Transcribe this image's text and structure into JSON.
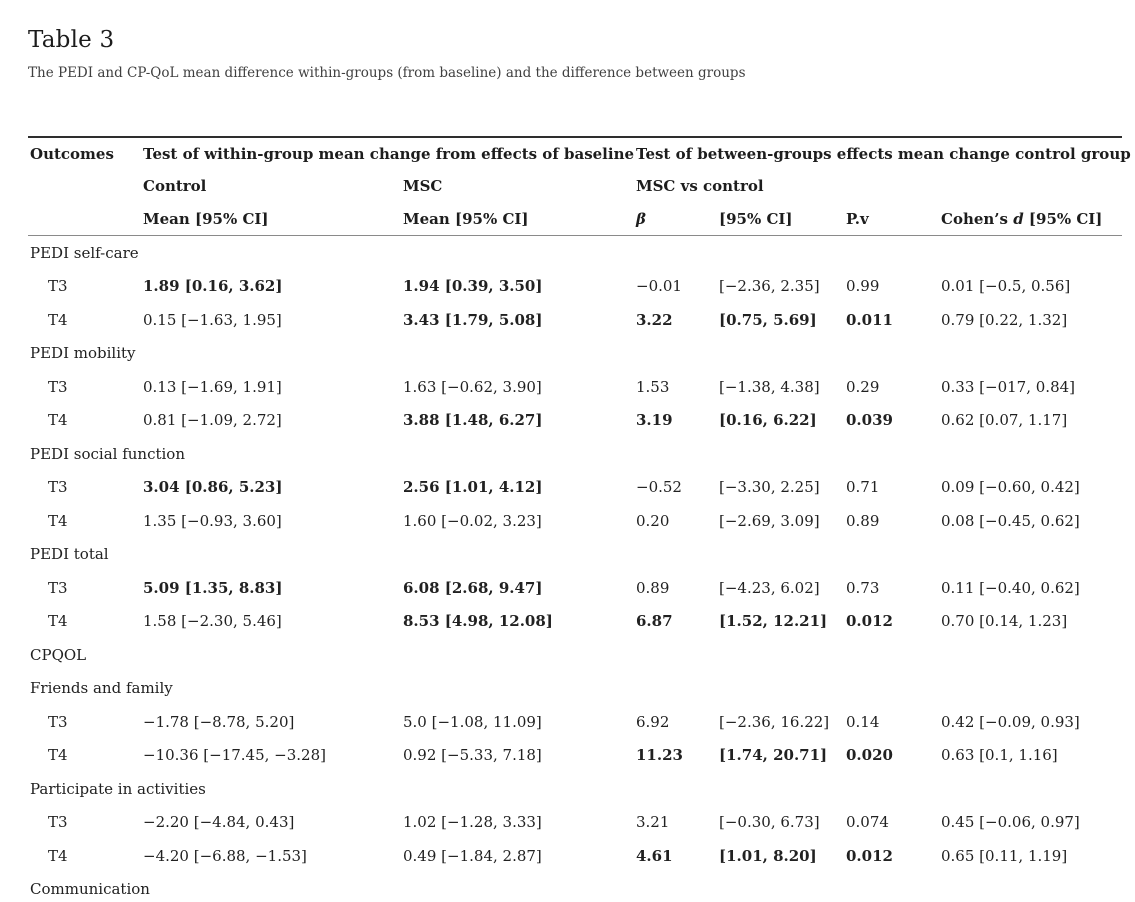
{
  "page": {
    "title": "Table 3",
    "caption": "The PEDI and CP-QoL mean difference within-groups (from baseline) and the difference between groups"
  },
  "colors": {
    "text": "#212121",
    "caption_text": "#404040",
    "top_border": "#2e2e2e",
    "header_underline": "#8a8a8a",
    "background": "#ffffff"
  },
  "table": {
    "header": {
      "row1": {
        "outcomes": "Outcomes",
        "within_group": "Test of within-group mean change from effects of baseline",
        "between_groups": "Test of between-groups effects mean change control group"
      },
      "row2": {
        "control": "Control",
        "msc": "MSC",
        "msc_vs_control": "MSC vs control"
      },
      "row3": {
        "control_mean": "Mean [95% CI]",
        "msc_mean": "Mean [95% CI]",
        "beta": "β",
        "ci": "[95% CI]",
        "pv": "P.v",
        "cohens_prefix": "Cohen’s ",
        "cohens_d": "d",
        "cohens_suffix": " [95% CI]"
      }
    },
    "rows": [
      {
        "type": "section",
        "label": "PEDI self-care"
      },
      {
        "type": "data",
        "label": "T3",
        "cells": [
          {
            "text": "1.89 [0.16, 3.62]",
            "bold": true
          },
          {
            "text": "1.94 [0.39, 3.50]",
            "bold": true
          },
          {
            "text": "−0.01",
            "bold": false
          },
          {
            "text": "[−2.36, 2.35]",
            "bold": false
          },
          {
            "text": "0.99",
            "bold": false
          },
          {
            "text": "0.01 [−0.5, 0.56]",
            "bold": false
          }
        ]
      },
      {
        "type": "data",
        "label": "T4",
        "cells": [
          {
            "text": "0.15 [−1.63, 1.95]",
            "bold": false
          },
          {
            "text": "3.43 [1.79, 5.08]",
            "bold": true
          },
          {
            "text": "3.22",
            "bold": true
          },
          {
            "text": "[0.75, 5.69]",
            "bold": true
          },
          {
            "text": "0.011",
            "bold": true
          },
          {
            "text": "0.79 [0.22, 1.32]",
            "bold": false
          }
        ]
      },
      {
        "type": "section",
        "label": "PEDI mobility"
      },
      {
        "type": "data",
        "label": "T3",
        "cells": [
          {
            "text": "0.13 [−1.69, 1.91]",
            "bold": false
          },
          {
            "text": "1.63 [−0.62, 3.90]",
            "bold": false
          },
          {
            "text": "1.53",
            "bold": false
          },
          {
            "text": "[−1.38, 4.38]",
            "bold": false
          },
          {
            "text": "0.29",
            "bold": false
          },
          {
            "text": "0.33 [−017, 0.84]",
            "bold": false
          }
        ]
      },
      {
        "type": "data",
        "label": "T4",
        "cells": [
          {
            "text": "0.81 [−1.09, 2.72]",
            "bold": false
          },
          {
            "text": "3.88 [1.48, 6.27]",
            "bold": true
          },
          {
            "text": "3.19",
            "bold": true
          },
          {
            "text": "[0.16, 6.22]",
            "bold": true
          },
          {
            "text": "0.039",
            "bold": true
          },
          {
            "text": "0.62 [0.07, 1.17]",
            "bold": false
          }
        ]
      },
      {
        "type": "section",
        "label": "PEDI social function"
      },
      {
        "type": "data",
        "label": "T3",
        "cells": [
          {
            "text": "3.04 [0.86, 5.23]",
            "bold": true
          },
          {
            "text": "2.56 [1.01, 4.12]",
            "bold": true
          },
          {
            "text": "−0.52",
            "bold": false
          },
          {
            "text": "[−3.30, 2.25]",
            "bold": false
          },
          {
            "text": "0.71",
            "bold": false
          },
          {
            "text": "0.09 [−0.60, 0.42]",
            "bold": false
          }
        ]
      },
      {
        "type": "data",
        "label": "T4",
        "cells": [
          {
            "text": "1.35 [−0.93, 3.60]",
            "bold": false
          },
          {
            "text": "1.60 [−0.02, 3.23]",
            "bold": false
          },
          {
            "text": "0.20",
            "bold": false
          },
          {
            "text": "[−2.69, 3.09]",
            "bold": false
          },
          {
            "text": "0.89",
            "bold": false
          },
          {
            "text": "0.08 [−0.45, 0.62]",
            "bold": false
          }
        ]
      },
      {
        "type": "section",
        "label": "PEDI total"
      },
      {
        "type": "data",
        "label": "T3",
        "cells": [
          {
            "text": "5.09 [1.35, 8.83]",
            "bold": true
          },
          {
            "text": "6.08 [2.68, 9.47]",
            "bold": true
          },
          {
            "text": "0.89",
            "bold": false
          },
          {
            "text": "[−4.23, 6.02]",
            "bold": false
          },
          {
            "text": "0.73",
            "bold": false
          },
          {
            "text": "0.11 [−0.40, 0.62]",
            "bold": false
          }
        ]
      },
      {
        "type": "data",
        "label": "T4",
        "cells": [
          {
            "text": "1.58 [−2.30, 5.46]",
            "bold": false
          },
          {
            "text": "8.53 [4.98, 12.08]",
            "bold": true
          },
          {
            "text": "6.87",
            "bold": true
          },
          {
            "text": "[1.52, 12.21]",
            "bold": true
          },
          {
            "text": "0.012",
            "bold": true
          },
          {
            "text": "0.70 [0.14, 1.23]",
            "bold": false
          }
        ]
      },
      {
        "type": "section",
        "label": "CPQOL"
      },
      {
        "type": "section",
        "label": "Friends and family"
      },
      {
        "type": "data",
        "label": "T3",
        "cells": [
          {
            "text": "−1.78 [−8.78, 5.20]",
            "bold": false
          },
          {
            "text": "5.0 [−1.08, 11.09]",
            "bold": false
          },
          {
            "text": "6.92",
            "bold": false
          },
          {
            "text": "[−2.36, 16.22]",
            "bold": false
          },
          {
            "text": "0.14",
            "bold": false
          },
          {
            "text": "0.42 [−0.09, 0.93]",
            "bold": false
          }
        ]
      },
      {
        "type": "data",
        "label": "T4",
        "cells": [
          {
            "text": "−10.36 [−17.45, −3.28]",
            "bold": false
          },
          {
            "text": "0.92 [−5.33, 7.18]",
            "bold": false
          },
          {
            "text": "11.23",
            "bold": true
          },
          {
            "text": "[1.74, 20.71]",
            "bold": true
          },
          {
            "text": "0.020",
            "bold": true
          },
          {
            "text": "0.63 [0.1, 1.16]",
            "bold": false
          }
        ]
      },
      {
        "type": "section",
        "label": "Participate in activities"
      },
      {
        "type": "data",
        "label": "T3",
        "cells": [
          {
            "text": "−2.20 [−4.84, 0.43]",
            "bold": false
          },
          {
            "text": "1.02 [−1.28, 3.33]",
            "bold": false
          },
          {
            "text": "3.21",
            "bold": false
          },
          {
            "text": "[−0.30, 6.73]",
            "bold": false
          },
          {
            "text": "0.074",
            "bold": false
          },
          {
            "text": "0.45 [−0.06, 0.97]",
            "bold": false
          }
        ]
      },
      {
        "type": "data",
        "label": "T4",
        "cells": [
          {
            "text": "−4.20 [−6.88, −1.53]",
            "bold": false
          },
          {
            "text": "0.49 [−1.84, 2.87]",
            "bold": false
          },
          {
            "text": "4.61",
            "bold": true
          },
          {
            "text": "[1.01, 8.20]",
            "bold": true
          },
          {
            "text": "0.012",
            "bold": true
          },
          {
            "text": "0.65 [0.11, 1.19]",
            "bold": false
          }
        ]
      },
      {
        "type": "section",
        "label": "Communication"
      }
    ]
  }
}
